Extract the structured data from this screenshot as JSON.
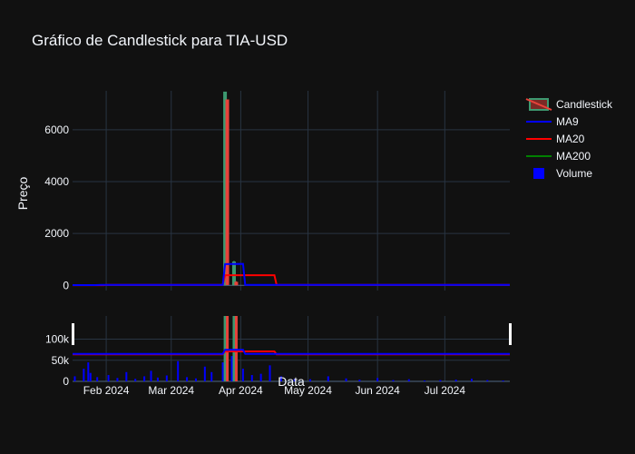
{
  "chart_data": {
    "type": "candlestick",
    "title": "Gráfico de Candlestick para TIA-USD",
    "ylabel": "Preço",
    "xlabel": "Data",
    "x_ticks": [
      "Feb 2024",
      "Mar 2024",
      "Apr 2024",
      "May 2024",
      "Jun 2024",
      "Jul 2024"
    ],
    "price_axis": {
      "ticks": [
        0,
        2000,
        4000,
        6000
      ],
      "tick_labels": [
        "0",
        "2000",
        "4000",
        "6000"
      ],
      "range": [
        -200,
        7500
      ]
    },
    "volume_axis": {
      "ticks": [
        0,
        50000,
        100000
      ],
      "tick_labels": [
        "0",
        "50k",
        "100k"
      ],
      "range": [
        0,
        155000
      ]
    },
    "x_range": [
      "2024-01-17",
      "2024-07-30"
    ],
    "legend": {
      "placement": "right",
      "items": [
        {
          "name": "Candlestick",
          "color": "#e8423a"
        },
        {
          "name": "MA9",
          "color": "#0000ff"
        },
        {
          "name": "MA20",
          "color": "#ff0000"
        },
        {
          "name": "MA200",
          "color": "#008000"
        },
        {
          "name": "Volume",
          "color": "#0000ff"
        }
      ]
    },
    "candles": [
      {
        "date": "2024-03-25",
        "open": 20,
        "high": 7450,
        "low": 10,
        "close": 7450
      },
      {
        "date": "2024-03-26",
        "open": 7150,
        "high": 7150,
        "low": 20,
        "close": 30
      },
      {
        "date": "2024-03-29",
        "open": 20,
        "high": 950,
        "low": 10,
        "close": 900
      },
      {
        "date": "2024-03-30",
        "open": 120,
        "high": 160,
        "low": 10,
        "close": 20
      }
    ],
    "ma9": [
      {
        "date": "2024-01-17",
        "value": 10
      },
      {
        "date": "2024-01-27",
        "value": 10
      },
      {
        "date": "2024-01-30",
        "value": 20
      },
      {
        "date": "2024-03-24",
        "value": 20
      },
      {
        "date": "2024-03-25",
        "value": 820
      },
      {
        "date": "2024-04-02",
        "value": 830
      },
      {
        "date": "2024-04-03",
        "value": 20
      },
      {
        "date": "2024-07-30",
        "value": 20
      }
    ],
    "ma20": [
      {
        "date": "2024-01-17",
        "value": 5
      },
      {
        "date": "2024-01-31",
        "value": 5
      },
      {
        "date": "2024-02-01",
        "value": 20
      },
      {
        "date": "2024-03-24",
        "value": 20
      },
      {
        "date": "2024-03-25",
        "value": 390
      },
      {
        "date": "2024-04-16",
        "value": 390
      },
      {
        "date": "2024-04-17",
        "value": 20
      },
      {
        "date": "2024-07-30",
        "value": 20
      }
    ],
    "volume": [
      {
        "date": "2024-01-18",
        "value": 12000
      },
      {
        "date": "2024-01-22",
        "value": 30000
      },
      {
        "date": "2024-01-24",
        "value": 45000
      },
      {
        "date": "2024-01-25",
        "value": 20000
      },
      {
        "date": "2024-01-28",
        "value": 10000
      },
      {
        "date": "2024-02-02",
        "value": 15000
      },
      {
        "date": "2024-02-06",
        "value": 8000
      },
      {
        "date": "2024-02-10",
        "value": 22000
      },
      {
        "date": "2024-02-14",
        "value": 6000
      },
      {
        "date": "2024-02-18",
        "value": 12000
      },
      {
        "date": "2024-02-21",
        "value": 25000
      },
      {
        "date": "2024-02-24",
        "value": 9000
      },
      {
        "date": "2024-02-28",
        "value": 14000
      },
      {
        "date": "2024-03-04",
        "value": 48000
      },
      {
        "date": "2024-03-08",
        "value": 10000
      },
      {
        "date": "2024-03-12",
        "value": 7000
      },
      {
        "date": "2024-03-16",
        "value": 35000
      },
      {
        "date": "2024-03-19",
        "value": 22000
      },
      {
        "date": "2024-03-24",
        "value": 45000
      },
      {
        "date": "2024-03-25",
        "value": 150000
      },
      {
        "date": "2024-03-26",
        "value": 150000
      },
      {
        "date": "2024-03-28",
        "value": 60000
      },
      {
        "date": "2024-03-30",
        "value": 70000
      },
      {
        "date": "2024-04-02",
        "value": 30000
      },
      {
        "date": "2024-04-06",
        "value": 15000
      },
      {
        "date": "2024-04-10",
        "value": 18000
      },
      {
        "date": "2024-04-14",
        "value": 38000
      },
      {
        "date": "2024-04-19",
        "value": 12000
      },
      {
        "date": "2024-04-25",
        "value": 6000
      },
      {
        "date": "2024-05-02",
        "value": 5000
      },
      {
        "date": "2024-05-10",
        "value": 12000
      },
      {
        "date": "2024-05-18",
        "value": 7000
      },
      {
        "date": "2024-05-24",
        "value": 4000
      },
      {
        "date": "2024-06-01",
        "value": 8000
      },
      {
        "date": "2024-06-08",
        "value": 3000
      },
      {
        "date": "2024-06-15",
        "value": 5000
      },
      {
        "date": "2024-06-22",
        "value": 2000
      },
      {
        "date": "2024-06-29",
        "value": 3000
      },
      {
        "date": "2024-07-06",
        "value": 4000
      },
      {
        "date": "2024-07-13",
        "value": 6000
      },
      {
        "date": "2024-07-20",
        "value": 3000
      },
      {
        "date": "2024-07-27",
        "value": 2000
      }
    ],
    "volume_panel_ma9": [
      {
        "date": "2024-01-17",
        "value": 65000
      },
      {
        "date": "2024-03-24",
        "value": 65000
      },
      {
        "date": "2024-03-25",
        "value": 75000
      },
      {
        "date": "2024-04-02",
        "value": 75000
      },
      {
        "date": "2024-04-03",
        "value": 65000
      },
      {
        "date": "2024-07-30",
        "value": 65000
      }
    ],
    "volume_panel_ma20": [
      {
        "date": "2024-01-17",
        "value": 64000
      },
      {
        "date": "2024-03-24",
        "value": 64000
      },
      {
        "date": "2024-03-25",
        "value": 71000
      },
      {
        "date": "2024-04-16",
        "value": 71000
      },
      {
        "date": "2024-04-17",
        "value": 64000
      },
      {
        "date": "2024-07-30",
        "value": 64000
      }
    ],
    "grid": true
  }
}
